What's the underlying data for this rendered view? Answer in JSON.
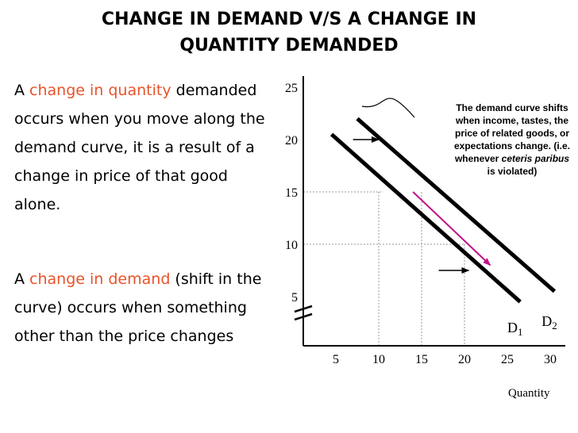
{
  "title": {
    "line1": "CHANGE IN DEMAND V/S A CHANGE IN",
    "line2": "QUANTITY DEMANDED"
  },
  "left_text": {
    "p1": {
      "prefix": "A ",
      "highlight": "change in quantity",
      "rest": " demanded occurs when you move along the demand curve, it is a result of a change in price of that good alone."
    },
    "p2": {
      "prefix": "A ",
      "highlight": "change in demand",
      "rest": " (shift in the curve) occurs when something other than the price changes"
    }
  },
  "callout": {
    "text_before": "The demand curve shifts when income, tastes, the price of related goods, or expectations change. (i.e. whenever ",
    "italic": "ceteris paribus",
    "text_after": " is violated)"
  },
  "chart_data": {
    "type": "line",
    "xlabel": "Quantity",
    "ylabel": "",
    "x_ticks": [
      "5",
      "10",
      "15",
      "20",
      "25",
      "30"
    ],
    "y_ticks": [
      "5",
      "10",
      "15",
      "20",
      "25"
    ],
    "series": [
      {
        "name": "D1",
        "points": [
          [
            4.5,
            20.5
          ],
          [
            26.5,
            4.5
          ]
        ]
      },
      {
        "name": "D2",
        "points": [
          [
            7.5,
            22
          ],
          [
            30.5,
            5.5
          ]
        ]
      }
    ],
    "reference_lines": [
      {
        "from": [
          0,
          15
        ],
        "to": [
          10.5,
          15
        ]
      },
      {
        "from": [
          0,
          10
        ],
        "to": [
          20,
          10
        ]
      },
      {
        "from": [
          10,
          15
        ],
        "to": [
          10,
          0
        ]
      },
      {
        "from": [
          15,
          15
        ],
        "to": [
          15,
          0
        ]
      },
      {
        "from": [
          20,
          10
        ],
        "to": [
          20,
          0
        ]
      }
    ],
    "shift_arrows": [
      {
        "from": [
          7,
          20
        ],
        "to": [
          10,
          20
        ]
      },
      {
        "from": [
          17,
          7.5
        ],
        "to": [
          20.5,
          7.5
        ]
      }
    ],
    "movement_arrow": {
      "from": [
        14,
        15
      ],
      "to": [
        23,
        8
      ],
      "color": "#c0108a"
    },
    "legend_labels": {
      "d1": "D",
      "d1_sub": "1",
      "d2": "D",
      "d2_sub": "2"
    },
    "axis_break": true
  }
}
